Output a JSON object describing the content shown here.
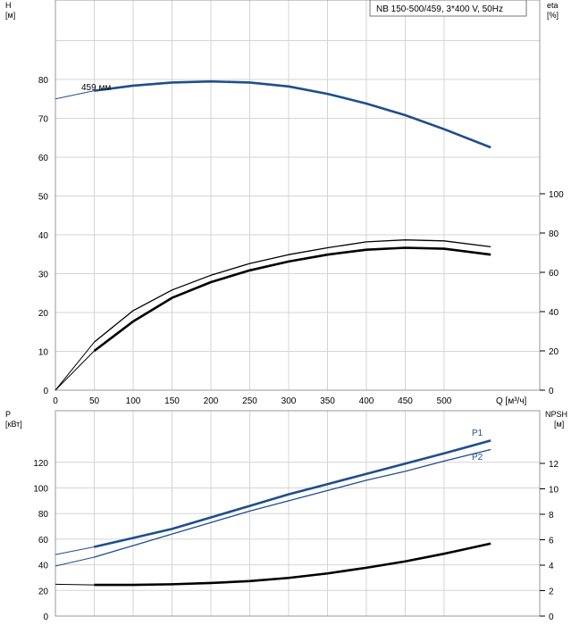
{
  "chart_data": [
    {
      "type": "line",
      "title": "NB 150-500/459, 3*400 V, 50Hz",
      "xlabel": "Q [м³/ч]",
      "xlim": [
        0,
        560
      ],
      "xticks": [
        0,
        50,
        100,
        150,
        200,
        250,
        300,
        350,
        400,
        450,
        500
      ],
      "y_left": {
        "label": "H",
        "unit": "[м]",
        "lim": [
          0,
          100
        ],
        "ticks": [
          0,
          10,
          20,
          30,
          40,
          50,
          60,
          70,
          80
        ]
      },
      "y_right": {
        "label": "eta",
        "unit": "[%]",
        "lim": [
          0,
          100
        ],
        "ticks": [
          0,
          20,
          40,
          60,
          80,
          100
        ]
      },
      "grid": true,
      "series": [
        {
          "name": "459 мм",
          "axis": "left",
          "color": "#1f4e8c",
          "dashed_x": [
            0,
            50
          ],
          "dashed_y": [
            75,
            77.1
          ],
          "x": [
            50,
            100,
            150,
            200,
            250,
            300,
            350,
            400,
            450,
            500,
            560
          ],
          "y": [
            77.1,
            78.4,
            79.2,
            79.5,
            79.2,
            78.2,
            76.3,
            73.8,
            70.8,
            67.2,
            62.5
          ]
        },
        {
          "axis": "right",
          "color": "#000000",
          "bold": false,
          "dashed_x": [
            0,
            50
          ],
          "dashed_y": [
            0,
            24.5
          ],
          "x": [
            50,
            100,
            150,
            200,
            250,
            300,
            350,
            400,
            450,
            500,
            560
          ],
          "y": [
            24.5,
            40.5,
            51,
            58.5,
            64.5,
            69,
            72.5,
            75.5,
            76.5,
            76,
            73
          ]
        },
        {
          "axis": "right",
          "color": "#000000",
          "bold": true,
          "dashed_x": [
            0,
            50
          ],
          "dashed_y": [
            0,
            20
          ],
          "x": [
            50,
            100,
            150,
            200,
            250,
            300,
            350,
            400,
            450,
            500,
            560
          ],
          "y": [
            20,
            35,
            47,
            55,
            61,
            65.5,
            69,
            71.5,
            72.5,
            72,
            69
          ]
        }
      ]
    },
    {
      "type": "line",
      "xlim": [
        0,
        560
      ],
      "y_left": {
        "label": "P",
        "unit": "[кВт]",
        "lim": [
          0,
          150
        ],
        "ticks": [
          0,
          20,
          40,
          60,
          80,
          100,
          120
        ]
      },
      "y_right": {
        "label": "NPSH",
        "unit": "[м]",
        "lim": [
          0,
          15
        ],
        "ticks": [
          0,
          2,
          4,
          6,
          8,
          10,
          12
        ]
      },
      "grid": true,
      "series": [
        {
          "name": "P1",
          "axis": "left",
          "color": "#1f4e8c",
          "bold": true,
          "dashed_x": [
            0,
            50
          ],
          "dashed_y": [
            48,
            54
          ],
          "x": [
            50,
            100,
            150,
            200,
            250,
            300,
            350,
            400,
            450,
            500,
            560
          ],
          "y": [
            54,
            61,
            68,
            77,
            86,
            95,
            103,
            111,
            119,
            127,
            137
          ]
        },
        {
          "name": "P2",
          "axis": "left",
          "color": "#1f4e8c",
          "bold": false,
          "dashed_x": [
            0,
            50
          ],
          "dashed_y": [
            39,
            46
          ],
          "x": [
            50,
            100,
            150,
            200,
            250,
            300,
            350,
            400,
            450,
            500,
            560
          ],
          "y": [
            46,
            55,
            64,
            73,
            82,
            90,
            98,
            106,
            113,
            121,
            130
          ]
        },
        {
          "axis": "right",
          "color": "#000000",
          "bold": true,
          "dashed_x": [
            0,
            50
          ],
          "dashed_y": [
            2.5,
            2.45
          ],
          "x": [
            50,
            100,
            150,
            200,
            250,
            300,
            350,
            400,
            450,
            500,
            560
          ],
          "y": [
            2.45,
            2.45,
            2.5,
            2.6,
            2.75,
            3.0,
            3.35,
            3.8,
            4.3,
            4.9,
            5.7
          ]
        }
      ]
    }
  ]
}
